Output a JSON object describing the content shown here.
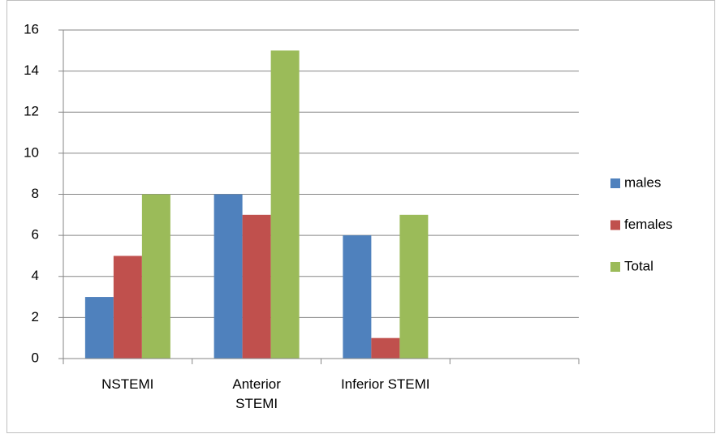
{
  "chart_data": {
    "type": "bar",
    "categories": [
      "NSTEMI",
      "Anterior STEMI",
      "Inferior STEMI",
      null
    ],
    "series": [
      {
        "name": "males",
        "color": "#4f81bd",
        "values": [
          3,
          8,
          6,
          null
        ]
      },
      {
        "name": "females",
        "color": "#c0504d",
        "values": [
          5,
          7,
          1,
          null
        ]
      },
      {
        "name": "Total",
        "color": "#9bbb59",
        "values": [
          8,
          15,
          7,
          null
        ]
      }
    ],
    "ylim": [
      0,
      16
    ],
    "yticks": [
      0,
      2,
      4,
      6,
      8,
      10,
      12,
      14,
      16
    ],
    "grid": true,
    "legend": "right"
  }
}
